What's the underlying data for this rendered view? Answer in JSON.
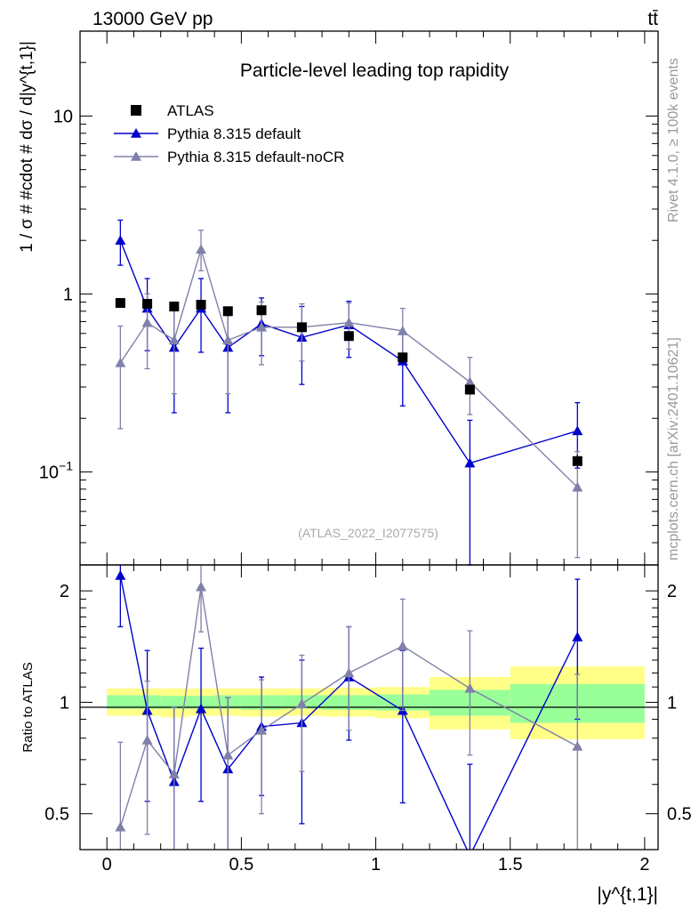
{
  "header": {
    "energy": "13000 GeV pp",
    "process": "tt̄"
  },
  "side_labels": {
    "rivet": "Rivet 4.1.0, ≥ 100k events",
    "source": "mcplots.cern.ch [arXiv:2401.10621]"
  },
  "chart_data": [
    {
      "type": "scatter",
      "panel": "main",
      "title": "Particle-level leading top rapidity",
      "ylabel": "1 / σ # #cdot # dσ / d|y^{t,1}|",
      "xlabel": "|y^{t,1}|",
      "yscale": "log",
      "xlim": [
        -0.1,
        2.05
      ],
      "ylim": [
        0.03,
        30
      ],
      "y_tick_labels": [
        "10^-1",
        "1",
        "10"
      ],
      "analysis_label": "(ATLAS_2022_I2077575)",
      "legend": {
        "position": "top-left",
        "entries": [
          "ATLAS",
          "Pythia 8.315 default",
          "Pythia 8.315 default-noCR"
        ]
      },
      "series": [
        {
          "name": "ATLAS",
          "marker": "square",
          "color": "#000000",
          "x": [
            0.05,
            0.15,
            0.25,
            0.35,
            0.45,
            0.575,
            0.725,
            0.9,
            1.1,
            1.35,
            1.75
          ],
          "xlo": [
            0.0,
            0.1,
            0.2,
            0.3,
            0.4,
            0.5,
            0.65,
            0.8,
            1.0,
            1.2,
            1.5
          ],
          "xhi": [
            0.1,
            0.2,
            0.3,
            0.4,
            0.5,
            0.65,
            0.8,
            1.0,
            1.2,
            1.5,
            2.0
          ],
          "y": [
            0.89,
            0.88,
            0.85,
            0.87,
            0.8,
            0.81,
            0.65,
            0.58,
            0.44,
            0.29,
            0.115
          ],
          "ylo": [
            0.87,
            0.86,
            0.83,
            0.85,
            0.78,
            0.79,
            0.63,
            0.56,
            0.42,
            0.275,
            0.105
          ],
          "yhi": [
            0.91,
            0.9,
            0.87,
            0.89,
            0.82,
            0.83,
            0.67,
            0.6,
            0.46,
            0.305,
            0.125
          ]
        },
        {
          "name": "Pythia 8.315 default",
          "marker": "triangle",
          "color": "#0000cc",
          "x": [
            0.05,
            0.15,
            0.25,
            0.35,
            0.45,
            0.575,
            0.725,
            0.9,
            1.1,
            1.35,
            1.75
          ],
          "y": [
            2.0,
            0.83,
            0.5,
            0.83,
            0.5,
            0.68,
            0.57,
            0.67,
            0.42,
            0.112,
            0.17
          ],
          "ylo": [
            1.45,
            0.48,
            0.215,
            0.47,
            0.215,
            0.45,
            0.31,
            0.44,
            0.235,
            0.028,
            0.105
          ],
          "yhi": [
            2.6,
            1.22,
            0.83,
            1.22,
            0.83,
            0.95,
            0.85,
            0.91,
            0.61,
            0.195,
            0.245
          ]
        },
        {
          "name": "Pythia 8.315 default-noCR",
          "marker": "triangle",
          "color": "#8080aa",
          "x": [
            0.05,
            0.15,
            0.25,
            0.35,
            0.45,
            0.575,
            0.725,
            0.9,
            1.1,
            1.35,
            1.75
          ],
          "y": [
            0.41,
            0.69,
            0.55,
            1.78,
            0.55,
            0.65,
            0.65,
            0.69,
            0.62,
            0.32,
            0.082
          ],
          "ylo": [
            0.175,
            0.38,
            0.275,
            1.35,
            0.275,
            0.4,
            0.42,
            0.49,
            0.42,
            0.21,
            0.033
          ],
          "yhi": [
            0.66,
            1.0,
            0.83,
            2.28,
            0.83,
            0.9,
            0.88,
            0.89,
            0.83,
            0.44,
            0.13
          ]
        }
      ]
    },
    {
      "type": "line",
      "panel": "ratio",
      "ylabel": "Ratio to ATLAS",
      "xlabel": "|y^{t,1}|",
      "yscale": "log",
      "xlim": [
        -0.1,
        2.05
      ],
      "ylim": [
        0.4,
        2.35
      ],
      "y_ticks": [
        0.5,
        1,
        2
      ],
      "y_tick_labels": [
        "0.5",
        "1",
        "2"
      ],
      "x_ticks": [
        0,
        0.5,
        1,
        1.5,
        2
      ],
      "x_tick_labels": [
        "0",
        "0.5",
        "1",
        "1.5",
        "2"
      ],
      "bands": {
        "edges": [
          0.0,
          0.1,
          0.2,
          0.3,
          0.4,
          0.5,
          0.65,
          0.8,
          1.0,
          1.2,
          1.5,
          2.0
        ],
        "inner_lo": [
          0.96,
          0.96,
          0.96,
          0.96,
          0.96,
          0.955,
          0.96,
          0.955,
          0.95,
          0.92,
          0.88
        ],
        "inner_hi": [
          1.045,
          1.045,
          1.04,
          1.04,
          1.045,
          1.045,
          1.045,
          1.045,
          1.05,
          1.08,
          1.12
        ],
        "outer_lo": [
          0.92,
          0.92,
          0.91,
          0.92,
          0.92,
          0.915,
          0.92,
          0.915,
          0.905,
          0.845,
          0.795
        ],
        "outer_hi": [
          1.09,
          1.09,
          1.09,
          1.09,
          1.09,
          1.09,
          1.09,
          1.095,
          1.1,
          1.17,
          1.25
        ],
        "inner_color": "#99ff99",
        "outer_color": "#ffff88"
      },
      "series": [
        {
          "name": "Pythia 8.315 default",
          "color": "#0000cc",
          "x": [
            0.05,
            0.15,
            0.25,
            0.35,
            0.45,
            0.575,
            0.725,
            0.9,
            1.1,
            1.35,
            1.75
          ],
          "y": [
            2.2,
            0.95,
            0.61,
            0.96,
            0.66,
            0.86,
            0.88,
            1.17,
            0.95,
            0.385,
            1.5
          ],
          "ylo": [
            1.6,
            0.54,
            0.25,
            0.54,
            0.27,
            0.56,
            0.47,
            0.79,
            0.535,
            0.1,
            0.9
          ],
          "yhi": [
            2.85,
            1.38,
            0.97,
            1.4,
            1.03,
            1.17,
            1.3,
            1.6,
            1.38,
            0.68,
            2.15
          ]
        },
        {
          "name": "Pythia 8.315 default-noCR",
          "color": "#8080aa",
          "x": [
            0.05,
            0.15,
            0.25,
            0.35,
            0.45,
            0.575,
            0.725,
            0.9,
            1.1,
            1.35,
            1.75
          ],
          "y": [
            0.46,
            0.79,
            0.64,
            2.05,
            0.72,
            0.84,
            0.99,
            1.2,
            1.42,
            1.09,
            0.76
          ],
          "ylo": [
            0.2,
            0.44,
            0.32,
            1.55,
            0.33,
            0.5,
            0.65,
            0.84,
            0.95,
            0.72,
            0.32
          ],
          "yhi": [
            0.78,
            1.14,
            0.97,
            2.6,
            1.03,
            1.15,
            1.34,
            1.6,
            1.9,
            1.56,
            1.19
          ]
        }
      ]
    }
  ]
}
